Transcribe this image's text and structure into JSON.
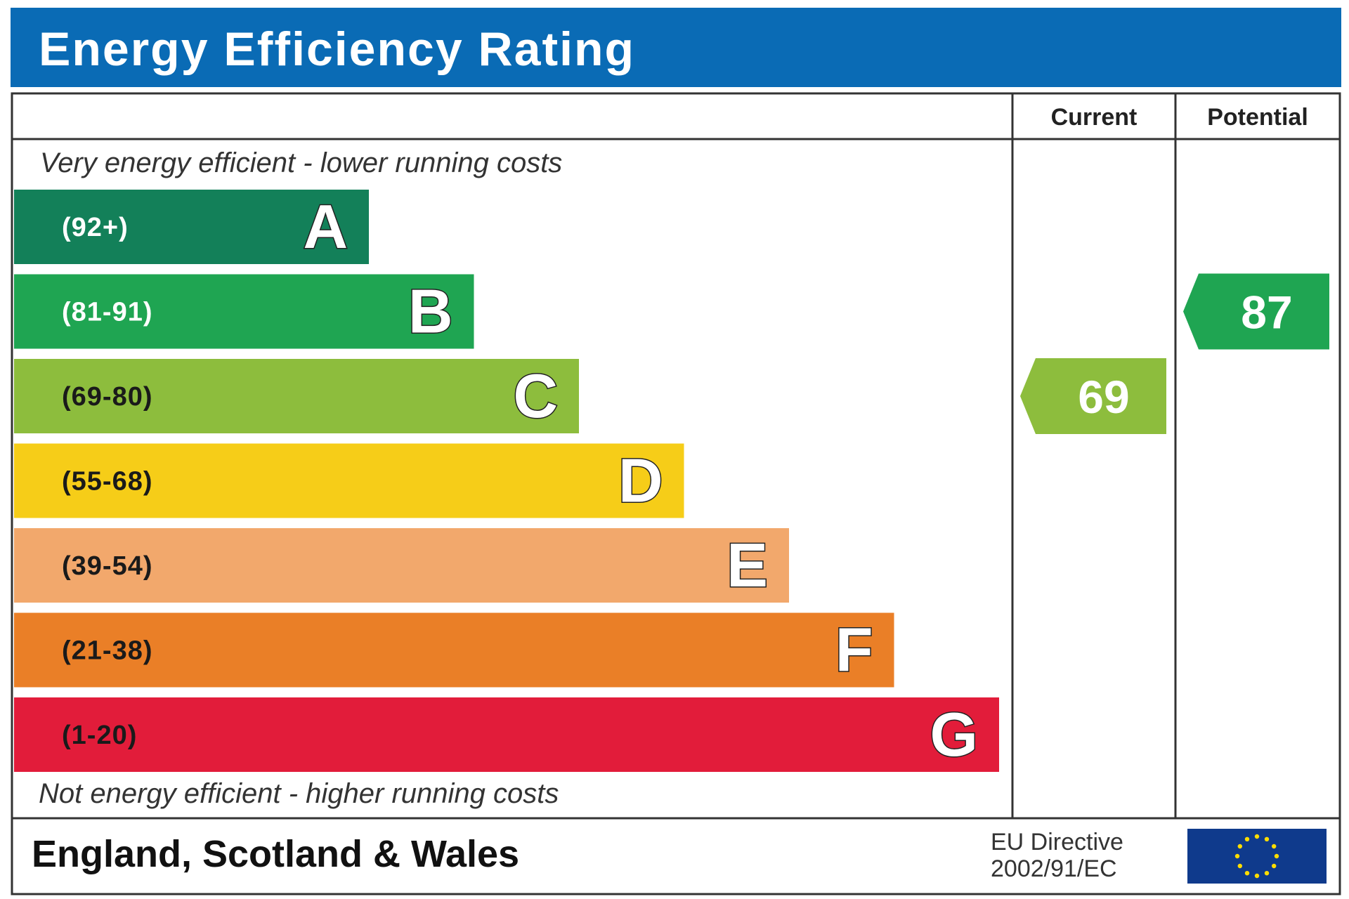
{
  "title": "Energy Efficiency Rating",
  "chart_data": {
    "type": "bar",
    "categories": [
      "A",
      "B",
      "C",
      "D",
      "E",
      "F",
      "G"
    ],
    "ranges": [
      "(92+)",
      "(81-91)",
      "(69-80)",
      "(55-68)",
      "(39-54)",
      "(21-38)",
      "(1-20)"
    ],
    "colors": [
      "#138059",
      "#1fa552",
      "#8dbd3d",
      "#f6cd18",
      "#f2a86c",
      "#ea7f27",
      "#e21c3a"
    ],
    "range_text_colors": [
      "#ffffff",
      "#ffffff",
      "#1a1a1a",
      "#1a1a1a",
      "#1a1a1a",
      "#1a1a1a",
      "#1a1a1a"
    ],
    "top_label": "Very energy efficient - lower running costs",
    "bottom_label": "Not energy efficient - higher running costs",
    "columns": [
      "Current",
      "Potential"
    ],
    "current": {
      "value": 69,
      "band": "C",
      "color": "#8dbd3d"
    },
    "potential": {
      "value": 87,
      "band": "B",
      "color": "#1fa552"
    }
  },
  "footer": {
    "region": "England, Scotland & Wales",
    "directive_line1": "EU Directive",
    "directive_line2": "2002/91/EC",
    "flag_color": "#0f3a8c",
    "star_color": "#ffdd00"
  }
}
